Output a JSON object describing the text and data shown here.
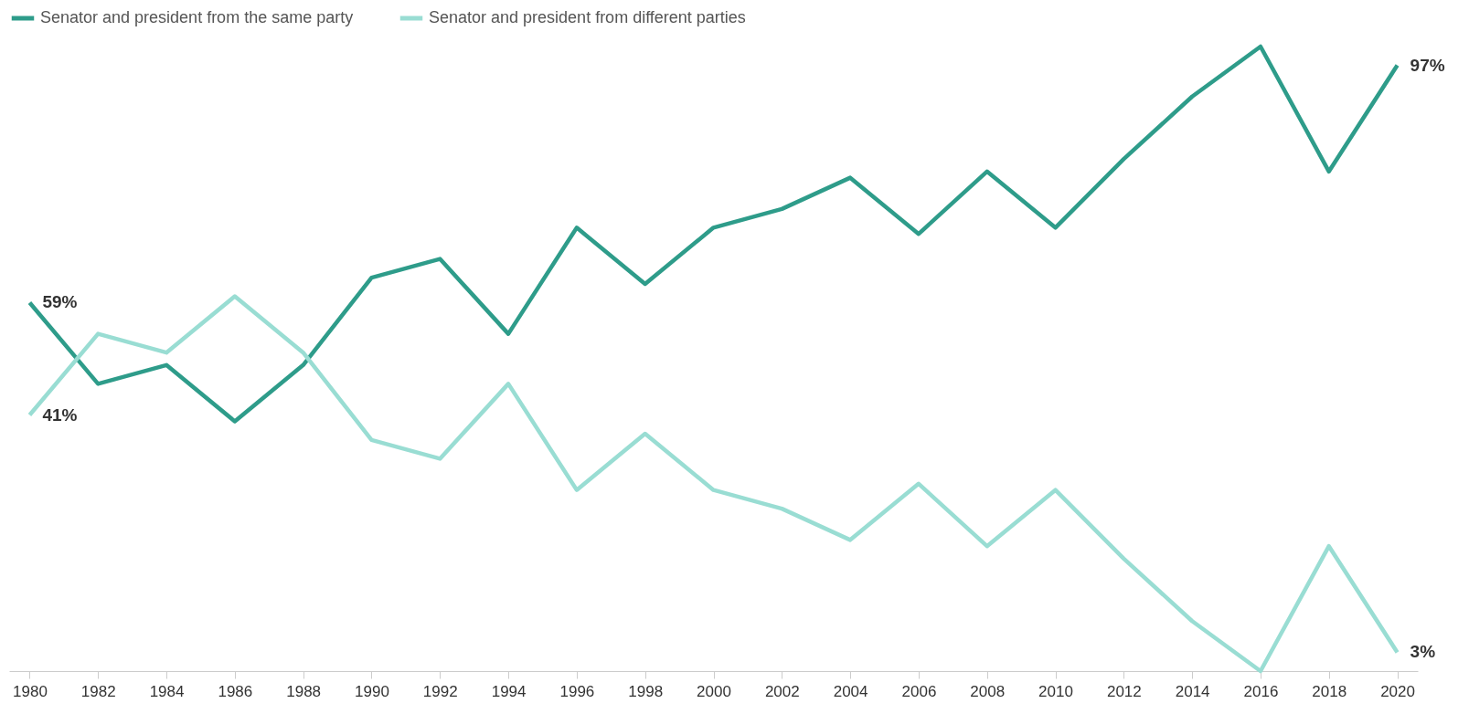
{
  "chart_data": {
    "type": "line",
    "categories": [
      "1980",
      "1982",
      "1984",
      "1986",
      "1988",
      "1990",
      "1992",
      "1994",
      "1996",
      "1998",
      "2000",
      "2002",
      "2004",
      "2006",
      "2008",
      "2010",
      "2012",
      "2014",
      "2016",
      "2018",
      "2020"
    ],
    "series": [
      {
        "name": "Senator and president from the same party",
        "color": "#2e9c8a",
        "values": [
          59,
          46,
          49,
          40,
          49,
          63,
          66,
          54,
          71,
          62,
          71,
          74,
          79,
          70,
          80,
          71,
          82,
          92,
          100,
          80,
          97
        ],
        "value_labels": [
          "59%",
          null,
          null,
          null,
          null,
          null,
          null,
          null,
          null,
          null,
          null,
          null,
          null,
          null,
          null,
          null,
          null,
          null,
          null,
          null,
          "97%"
        ]
      },
      {
        "name": "Senator and president from different parties",
        "color": "#99ddd3",
        "values": [
          41,
          54,
          51,
          60,
          51,
          37,
          34,
          46,
          29,
          38,
          29,
          26,
          21,
          30,
          20,
          29,
          18,
          8,
          0,
          20,
          3
        ],
        "value_labels": [
          "41%",
          null,
          null,
          null,
          null,
          null,
          null,
          null,
          null,
          null,
          null,
          null,
          null,
          null,
          null,
          null,
          null,
          null,
          null,
          null,
          "3%"
        ]
      }
    ],
    "tick_labels": "x",
    "grid": false,
    "legend": "top",
    "marker": "none",
    "line_style": "solid"
  }
}
